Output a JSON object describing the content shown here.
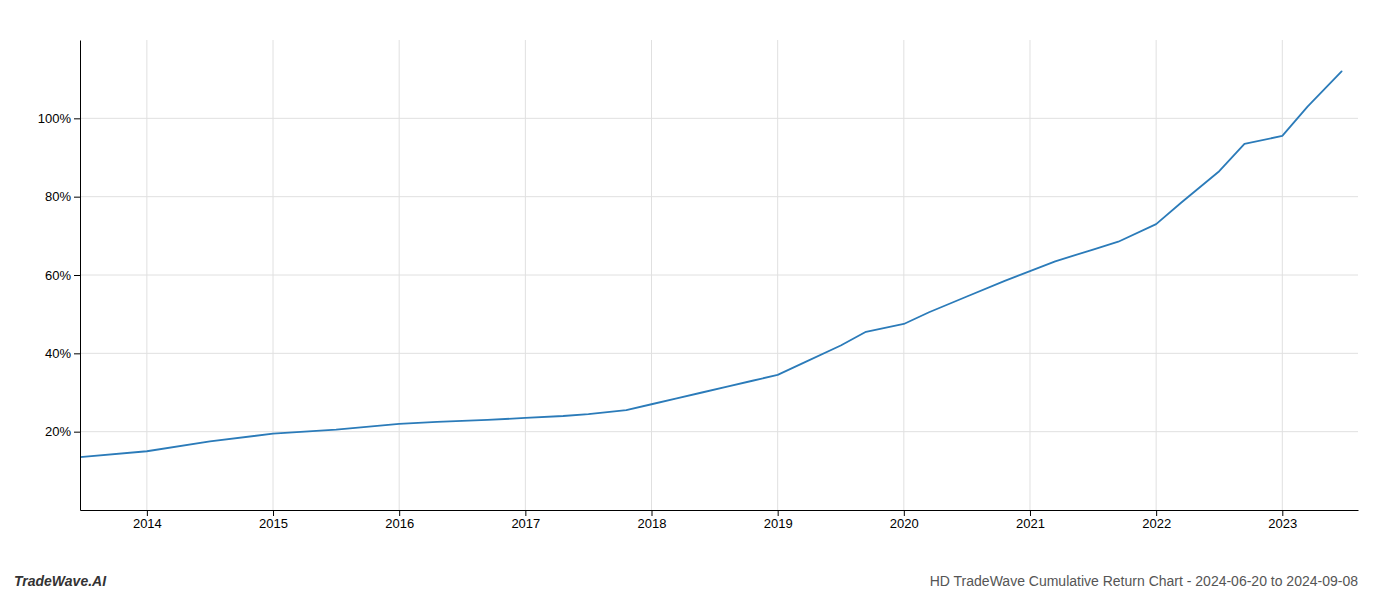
{
  "chart_data": {
    "type": "line",
    "title": "HD TradeWave Cumulative Return Chart - 2024-06-20 to 2024-09-08",
    "annotations": [
      "TradeWave.AI"
    ],
    "x": [
      2013.47,
      2014.0,
      2014.5,
      2015.0,
      2015.5,
      2016.0,
      2016.3,
      2016.7,
      2017.0,
      2017.3,
      2017.5,
      2017.8,
      2018.0,
      2018.2,
      2018.4,
      2018.6,
      2018.8,
      2019.0,
      2019.2,
      2019.5,
      2019.7,
      2020.0,
      2020.2,
      2020.5,
      2020.8,
      2021.0,
      2021.2,
      2021.5,
      2021.7,
      2022.0,
      2022.2,
      2022.5,
      2022.7,
      2023.0,
      2023.2,
      2023.47
    ],
    "values": [
      13.5,
      15.0,
      17.5,
      19.5,
      20.5,
      22.0,
      22.5,
      23.0,
      23.5,
      24.0,
      24.5,
      25.5,
      27.0,
      28.5,
      30.0,
      31.5,
      33.0,
      34.5,
      37.5,
      42.0,
      45.5,
      47.5,
      50.5,
      54.5,
      58.5,
      61.0,
      63.5,
      66.5,
      68.5,
      73.0,
      78.5,
      86.5,
      93.5,
      95.5,
      103.0,
      112.0
    ],
    "color": "#2b7bb9",
    "xlim": [
      2013.47,
      2023.6
    ],
    "ylim": [
      0,
      120
    ],
    "xticks": [
      2014,
      2015,
      2016,
      2017,
      2018,
      2019,
      2020,
      2021,
      2022,
      2023
    ],
    "yticks": [
      {
        "value": 20,
        "label": "20%"
      },
      {
        "value": 40,
        "label": "40%"
      },
      {
        "value": 60,
        "label": "60%"
      },
      {
        "value": 80,
        "label": "80%"
      },
      {
        "value": 100,
        "label": "100%"
      }
    ],
    "grid": true
  }
}
